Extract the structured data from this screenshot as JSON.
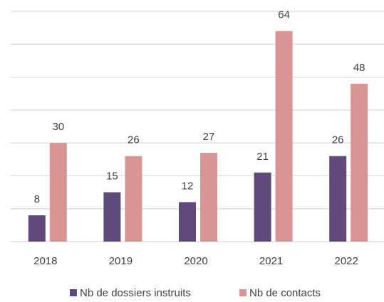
{
  "chart_data": {
    "type": "bar",
    "categories": [
      "2018",
      "2019",
      "2020",
      "2021",
      "2022"
    ],
    "series": [
      {
        "name": "Nb de dossiers instruits",
        "color": "#604a7b",
        "values": [
          8,
          15,
          12,
          21,
          26
        ]
      },
      {
        "name": "Nb de contacts",
        "color": "#d99594",
        "values": [
          30,
          26,
          27,
          64,
          48
        ]
      }
    ],
    "ylim": [
      0,
      70
    ],
    "yticks": [
      0,
      10,
      20,
      30,
      40,
      50,
      60,
      70
    ],
    "grid": true,
    "legend": "bottom"
  }
}
